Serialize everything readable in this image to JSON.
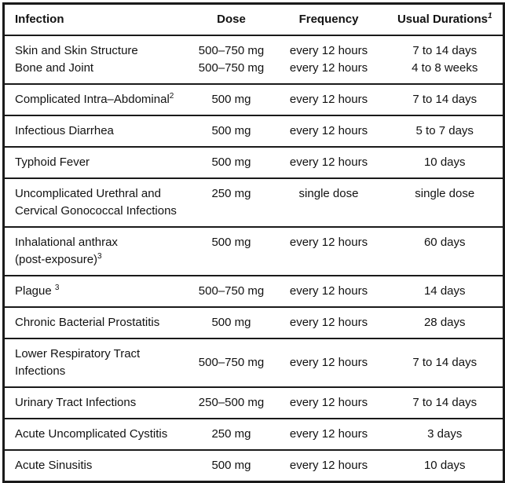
{
  "document": {
    "background_color": "#ffffff",
    "text_color": "#121212",
    "border_color": "#1a1a1a"
  },
  "table": {
    "headers": [
      {
        "label": "Infection",
        "sup": ""
      },
      {
        "label": "Dose",
        "sup": ""
      },
      {
        "label": "Frequency",
        "sup": ""
      },
      {
        "label": "Usual Durations",
        "sup": "1"
      }
    ],
    "rows": [
      {
        "valign": "middle",
        "infection": [
          {
            "text": "Skin and Skin Structure",
            "sup": ""
          },
          {
            "text": "Bone and Joint",
            "sup": ""
          }
        ],
        "dose": [
          "500–750 mg",
          "500–750 mg"
        ],
        "frequency": [
          "every 12 hours",
          "every 12 hours"
        ],
        "duration": [
          "7 to 14 days",
          "4 to 8 weeks"
        ]
      },
      {
        "valign": "middle",
        "infection": [
          {
            "text": "Complicated Intra–Abdominal",
            "sup": "2"
          }
        ],
        "dose": [
          "500 mg"
        ],
        "frequency": [
          "every 12 hours"
        ],
        "duration": [
          "7 to 14 days"
        ]
      },
      {
        "valign": "middle",
        "infection": [
          {
            "text": "Infectious Diarrhea",
            "sup": ""
          }
        ],
        "dose": [
          "500 mg"
        ],
        "frequency": [
          "every 12 hours"
        ],
        "duration": [
          "5 to 7 days"
        ]
      },
      {
        "valign": "middle",
        "infection": [
          {
            "text": "Typhoid Fever",
            "sup": ""
          }
        ],
        "dose": [
          "500 mg"
        ],
        "frequency": [
          "every 12 hours"
        ],
        "duration": [
          "10 days"
        ]
      },
      {
        "valign": "top",
        "infection": [
          {
            "text": "Uncomplicated Urethral and",
            "sup": ""
          },
          {
            "text": "Cervical Gonococcal Infections",
            "sup": ""
          }
        ],
        "dose": [
          "250 mg"
        ],
        "frequency": [
          "single dose"
        ],
        "duration": [
          "single dose"
        ]
      },
      {
        "valign": "top",
        "infection": [
          {
            "text": "Inhalational anthrax",
            "sup": ""
          },
          {
            "text": "(post-exposure)",
            "sup": "3"
          }
        ],
        "dose": [
          "500 mg"
        ],
        "frequency": [
          "every 12 hours"
        ],
        "duration": [
          "60 days"
        ]
      },
      {
        "valign": "middle",
        "infection": [
          {
            "text": "Plague ",
            "sup": "3"
          }
        ],
        "dose": [
          "500–750 mg"
        ],
        "frequency": [
          "every 12 hours"
        ],
        "duration": [
          "14 days"
        ]
      },
      {
        "valign": "middle",
        "infection": [
          {
            "text": "Chronic Bacterial Prostatitis",
            "sup": ""
          }
        ],
        "dose": [
          "500 mg"
        ],
        "frequency": [
          "every 12 hours"
        ],
        "duration": [
          "28 days"
        ]
      },
      {
        "valign": "middle",
        "infection": [
          {
            "text": "Lower Respiratory Tract",
            "sup": ""
          },
          {
            "text": "Infections",
            "sup": ""
          }
        ],
        "dose": [
          "500–750 mg"
        ],
        "frequency": [
          "every 12 hours"
        ],
        "duration": [
          "7 to 14 days"
        ]
      },
      {
        "valign": "middle",
        "infection": [
          {
            "text": "Urinary Tract Infections",
            "sup": ""
          }
        ],
        "dose": [
          "250–500 mg"
        ],
        "frequency": [
          "every 12 hours"
        ],
        "duration": [
          "7 to 14 days"
        ]
      },
      {
        "valign": "middle",
        "infection": [
          {
            "text": "Acute Uncomplicated Cystitis",
            "sup": ""
          }
        ],
        "dose": [
          "250 mg"
        ],
        "frequency": [
          "every 12 hours"
        ],
        "duration": [
          "3 days"
        ]
      },
      {
        "valign": "middle",
        "infection": [
          {
            "text": "Acute Sinusitis",
            "sup": ""
          }
        ],
        "dose": [
          "500 mg"
        ],
        "frequency": [
          "every 12 hours"
        ],
        "duration": [
          "10 days"
        ]
      }
    ]
  }
}
